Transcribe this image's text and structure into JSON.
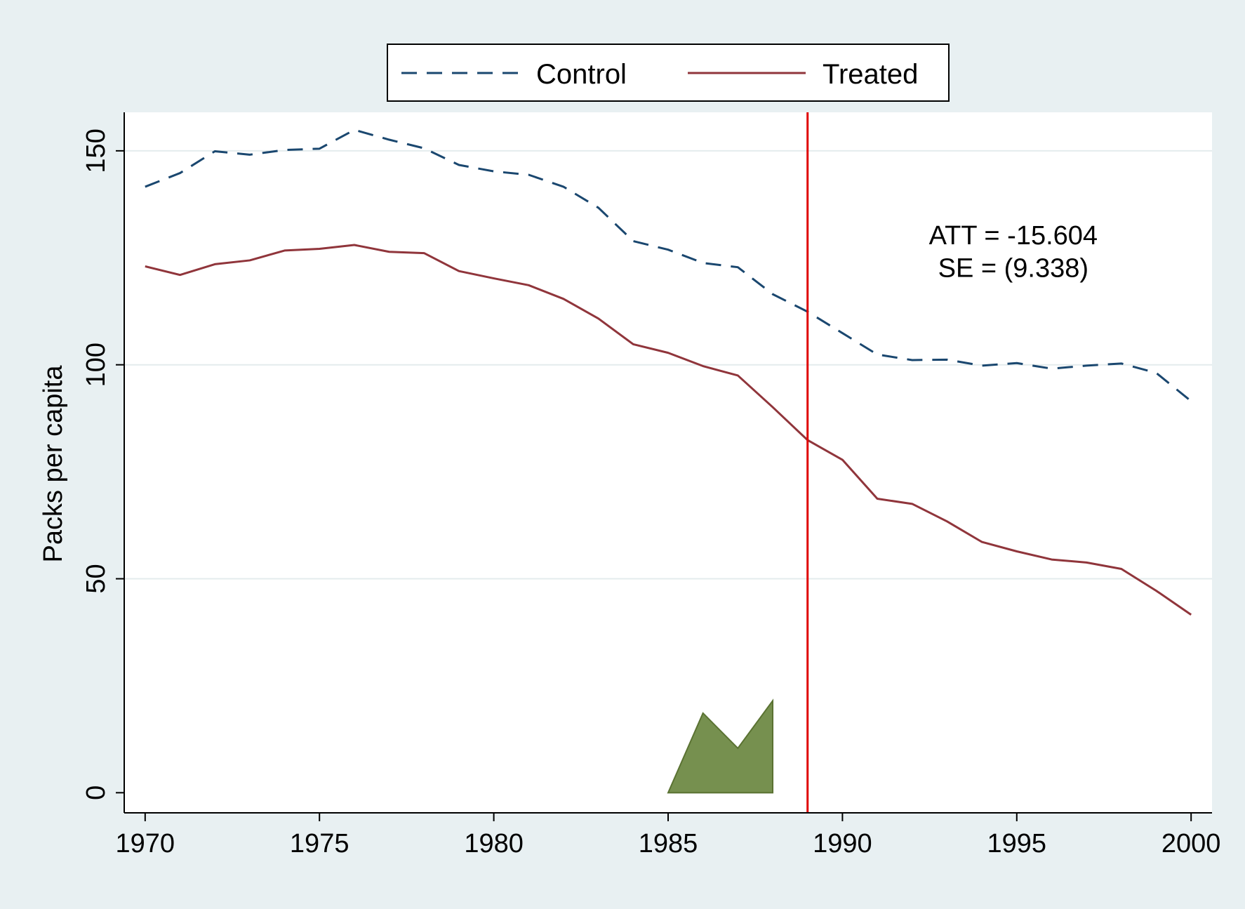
{
  "chart_data": {
    "type": "line",
    "title": "",
    "xlabel": "",
    "ylabel": "Packs per capita",
    "xlim": [
      1969.4,
      2000.6
    ],
    "ylim": [
      -4.7,
      159
    ],
    "xticks": [
      1970,
      1975,
      1980,
      1985,
      1990,
      1995,
      2000
    ],
    "yticks": [
      0,
      50,
      100,
      150
    ],
    "grid": true,
    "legend": "top, outside plot",
    "x": [
      1970,
      1971,
      1972,
      1973,
      1974,
      1975,
      1976,
      1977,
      1978,
      1979,
      1980,
      1981,
      1982,
      1983,
      1984,
      1985,
      1986,
      1987,
      1988,
      1989,
      1990,
      1991,
      1992,
      1993,
      1994,
      1995,
      1996,
      1997,
      1998,
      1999,
      2000
    ],
    "series": [
      {
        "name": "Control",
        "color": "#1a476f",
        "dash": true,
        "values": [
          141.6,
          144.8,
          149.9,
          149.1,
          150.2,
          150.5,
          154.9,
          152.6,
          150.6,
          146.7,
          145.2,
          144.4,
          141.6,
          136.7,
          128.9,
          126.9,
          123.8,
          122.8,
          116.5,
          112.4,
          107.4,
          102.4,
          101.1,
          101.2,
          99.8,
          100.4,
          99.1,
          99.8,
          100.3,
          98.1,
          91.5
        ]
      },
      {
        "name": "Treated",
        "color": "#90353b",
        "dash": false,
        "values": [
          123.0,
          121.0,
          123.5,
          124.4,
          126.7,
          127.1,
          128.0,
          126.4,
          126.1,
          121.9,
          120.2,
          118.6,
          115.4,
          110.8,
          104.8,
          102.8,
          99.7,
          97.5,
          90.1,
          82.4,
          77.8,
          68.7,
          67.5,
          63.4,
          58.6,
          56.4,
          54.5,
          53.8,
          52.3,
          47.2,
          41.6
        ]
      }
    ],
    "annotation": {
      "line1": "ATT = -15.604",
      "line2": "SE = (9.338)",
      "x": 1994.9,
      "y1": 128.2,
      "y2": 120.5
    },
    "treatment_line": {
      "x": 1989,
      "color": "#e00000"
    },
    "green_polygon": {
      "color": "#76904f",
      "stroke": "#5a7232",
      "points": [
        [
          1985,
          0
        ],
        [
          1986,
          18.6
        ],
        [
          1987,
          10.4
        ],
        [
          1988,
          21.5
        ],
        [
          1988,
          0
        ]
      ]
    }
  }
}
